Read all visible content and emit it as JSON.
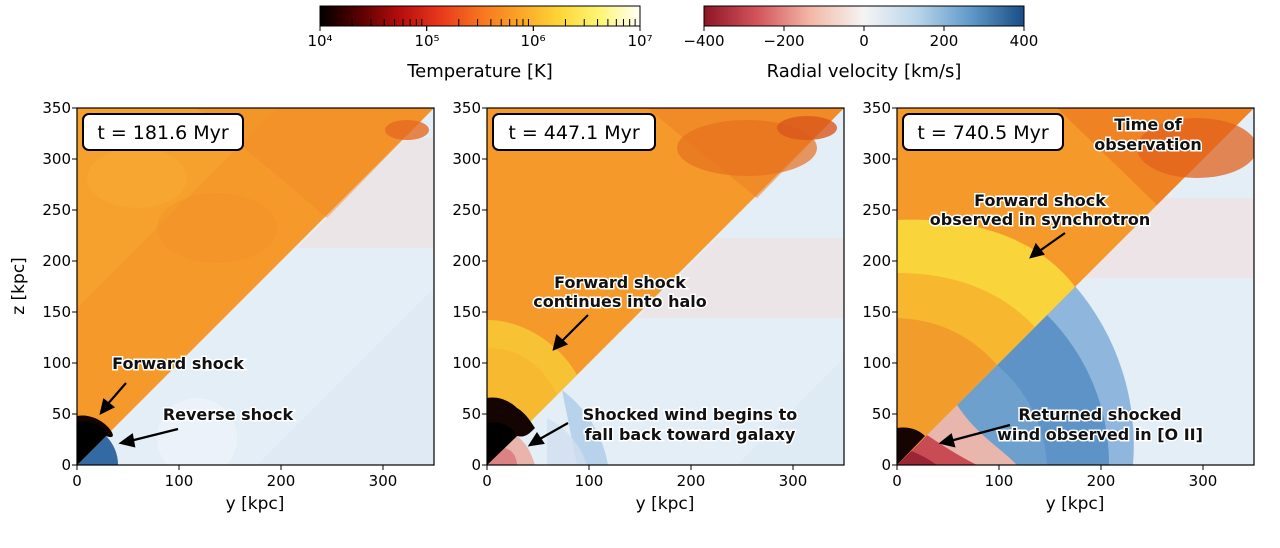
{
  "colorbars": {
    "temperature": {
      "label": "Temperature [K]",
      "ticks": [
        "10⁴",
        "10⁵",
        "10⁶",
        "10⁷"
      ],
      "log_range": [
        4,
        7
      ],
      "colors": [
        "#000000",
        "#5a0000",
        "#b70d0d",
        "#e8381c",
        "#f7731e",
        "#fba528",
        "#fdd738",
        "#fff576",
        "#fffff8"
      ]
    },
    "velocity": {
      "label": "Radial velocity [km/s]",
      "ticks": [
        "−400",
        "−200",
        "0",
        "200",
        "400"
      ],
      "range": [
        -400,
        400
      ],
      "colors": [
        "#8e1527",
        "#d3545c",
        "#f3b8a7",
        "#f4f4f4",
        "#b9d4ea",
        "#5f9ac9",
        "#1a4d87"
      ]
    }
  },
  "axes": {
    "xlabel": "y [kpc]",
    "ylabel": "z [kpc]",
    "range": [
      0,
      350
    ],
    "y_ticks": [
      "0",
      "50",
      "100",
      "150",
      "200",
      "250",
      "300",
      "350"
    ],
    "x_ticks": [
      "0",
      "100",
      "200",
      "300"
    ]
  },
  "panels": [
    {
      "time_label": "t = 181.6 Myr",
      "forward_shock_kpc": 40,
      "annotations": [
        "Forward shock",
        "Reverse shock"
      ]
    },
    {
      "time_label": "t = 447.1 Myr",
      "forward_shock_kpc": 118,
      "annotations": [
        "Forward shock",
        "continues into halo",
        "Shocked wind begins to",
        "fall back toward galaxy"
      ]
    },
    {
      "time_label": "t = 740.5 Myr",
      "forward_shock_kpc": 240,
      "annotations": [
        "Time of",
        "observation",
        "Forward shock",
        "observed in synchrotron",
        "Returned shocked",
        "wind observed in [O II]"
      ]
    }
  ],
  "colors": {
    "hot_gas": "#f59a2a",
    "hot_gas_dark": "#e8741f",
    "shock_yellow": "#f7d43a",
    "halo_blue": "#e3edf6",
    "outflow_blue": "#5b93c6",
    "inflow_red": "#c94c55"
  }
}
